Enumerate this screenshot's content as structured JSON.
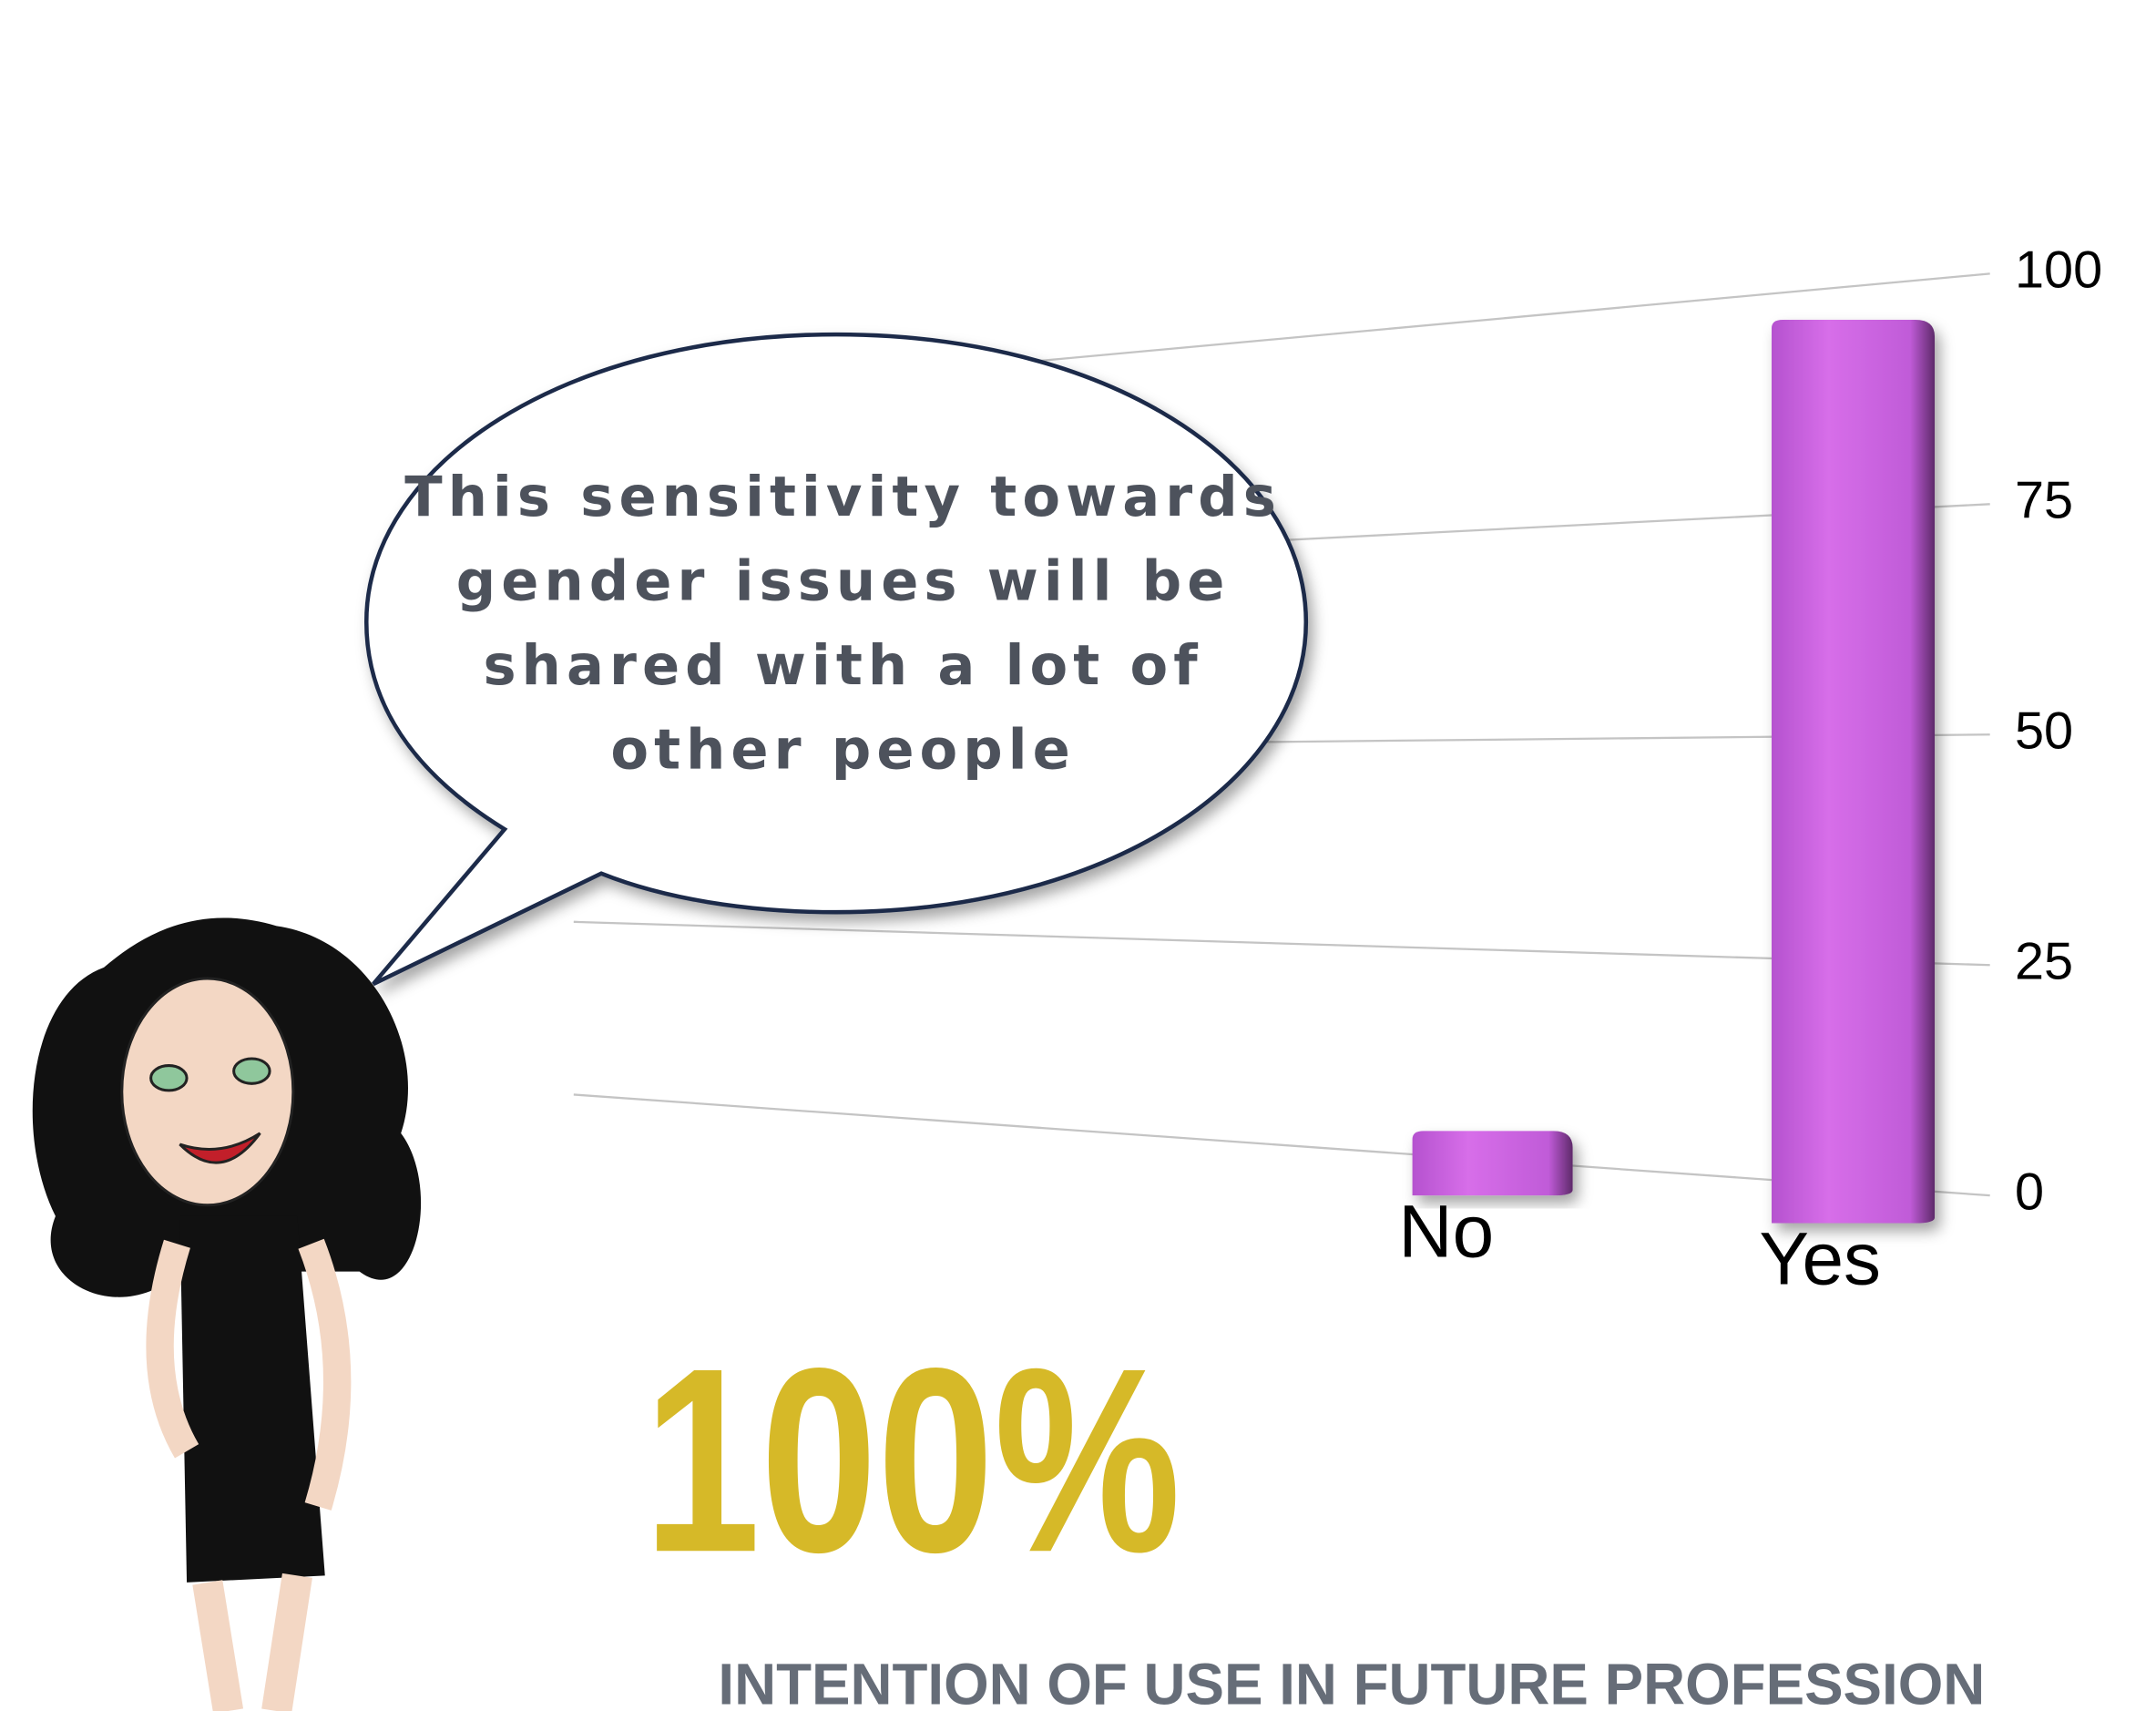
{
  "chart_data": {
    "type": "bar",
    "categories": [
      "No",
      "Yes"
    ],
    "values": [
      7,
      95
    ],
    "color": "#c95ee0",
    "ylim": [
      0,
      100
    ],
    "yticks": [
      0,
      25,
      50,
      75,
      100
    ],
    "grid": true,
    "annotations": [
      "This sensitivity towards gender issues will be shared with a lot of other people",
      "100%",
      "INTENTION OF USE IN FUTURE PROFESSION"
    ]
  }
}
